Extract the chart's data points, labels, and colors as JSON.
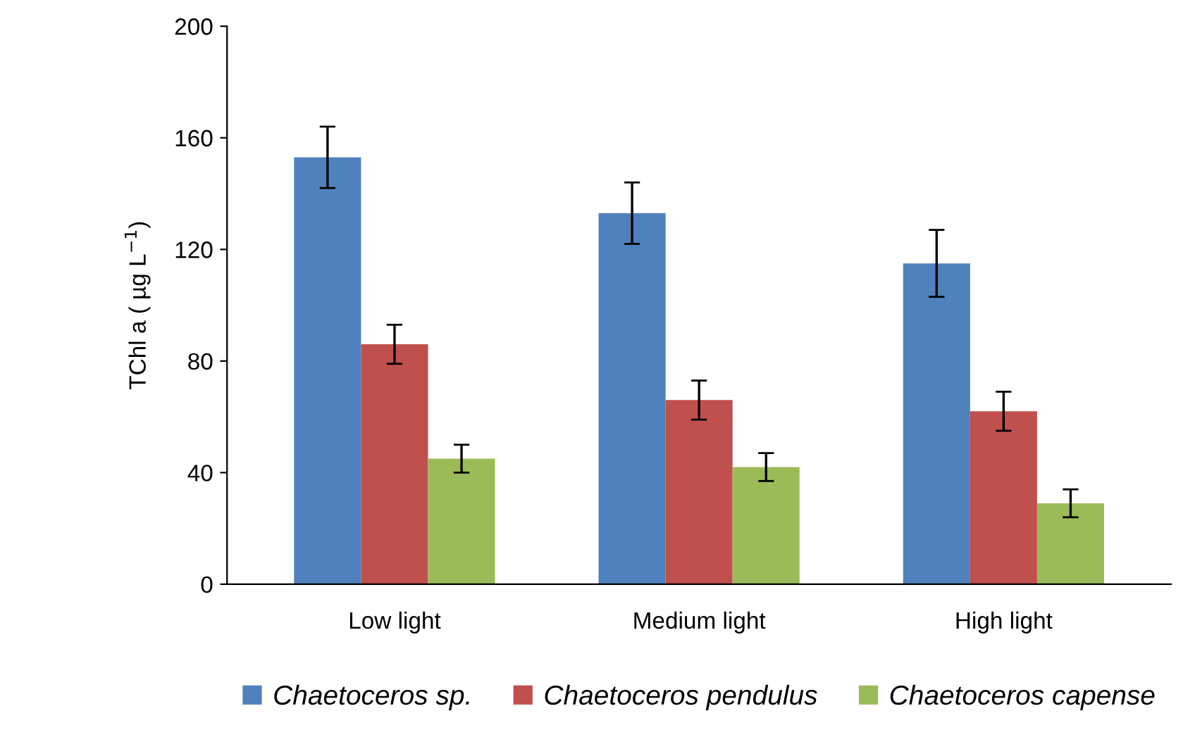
{
  "chart_data": {
    "type": "bar",
    "ylabel": "TChl a ( µg L$^{−1}$)",
    "categories": [
      "Low light",
      "Medium light",
      "High light"
    ],
    "series": [
      {
        "name": "Chaetoceros sp.",
        "color": "#4f81bd",
        "values": [
          153,
          133,
          115
        ],
        "errors": [
          11,
          11,
          12
        ]
      },
      {
        "name": "Chaetoceros pendulus",
        "color": "#c0504d",
        "values": [
          86,
          66,
          62
        ],
        "errors": [
          7,
          7,
          7
        ]
      },
      {
        "name": "Chaetoceros capense",
        "color": "#9bbb59",
        "values": [
          45,
          42,
          29
        ],
        "errors": [
          5,
          5,
          5
        ]
      }
    ],
    "ylim": [
      0,
      200
    ],
    "yticks": [
      0,
      40,
      80,
      120,
      160,
      200
    ],
    "grid": false,
    "legend": "bottom"
  }
}
